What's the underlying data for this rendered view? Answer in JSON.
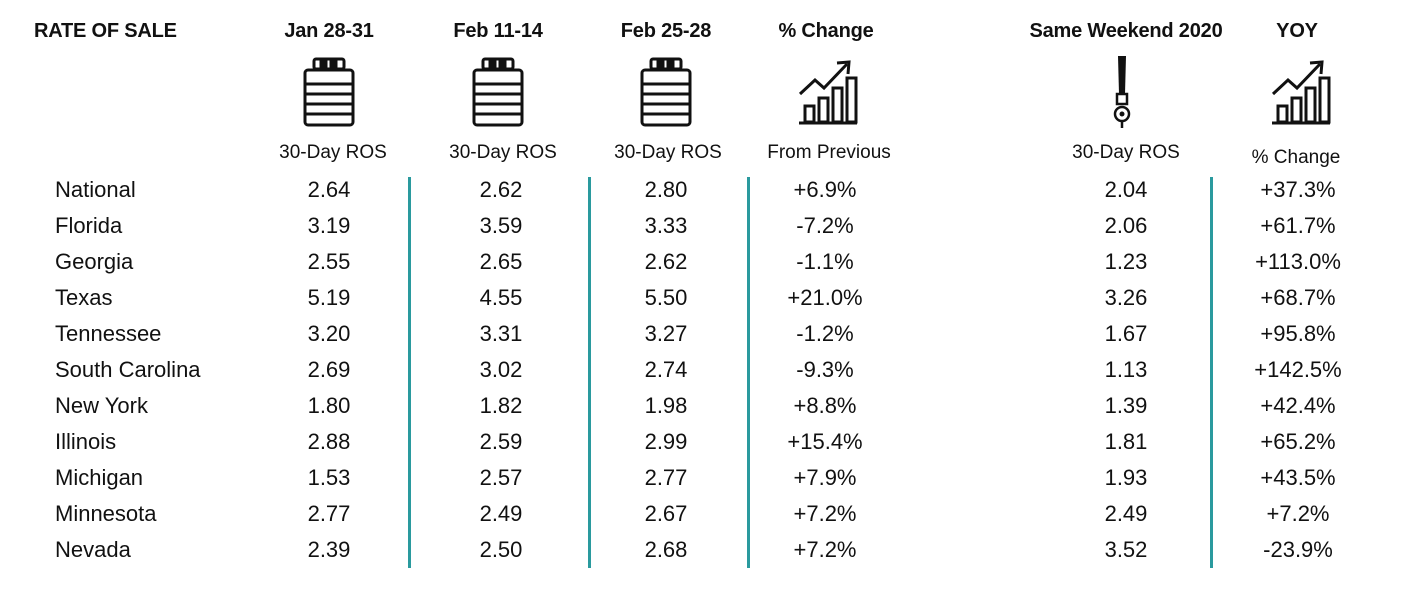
{
  "columns": {
    "label": "RATE OF SALE",
    "jan": "Jan 28-31",
    "feb11": "Feb 11-14",
    "feb25": "Feb 25-28",
    "pct": "% Change",
    "same2020": "Same Weekend 2020",
    "yoy": "YOY"
  },
  "subheaders": {
    "jan": "30-Day ROS",
    "feb11": "30-Day ROS",
    "feb25": "30-Day ROS",
    "pct": "From Previous",
    "same2020": "30-Day ROS",
    "yoy": "% Change"
  },
  "icons": {
    "jan": "keg-icon",
    "feb11": "keg-icon",
    "feb25": "keg-icon",
    "pct": "growth-chart-icon",
    "same2020": "beer-tap-icon",
    "yoy": "growth-chart-icon"
  },
  "colors": {
    "divider": "#2a9a9e"
  },
  "chart_data": {
    "type": "table",
    "title": "RATE OF SALE",
    "columns": [
      "Jan 28-31",
      "Feb 11-14",
      "Feb 25-28",
      "% Change",
      "Same Weekend 2020",
      "YOY"
    ],
    "rows": [
      {
        "state": "National",
        "jan": "2.64",
        "feb11": "2.62",
        "feb25": "2.80",
        "pct": "+6.9%",
        "same2020": "2.04",
        "yoy": "+37.3%"
      },
      {
        "state": "Florida",
        "jan": "3.19",
        "feb11": "3.59",
        "feb25": "3.33",
        "pct": "-7.2%",
        "same2020": "2.06",
        "yoy": "+61.7%"
      },
      {
        "state": "Georgia",
        "jan": "2.55",
        "feb11": "2.65",
        "feb25": "2.62",
        "pct": "-1.1%",
        "same2020": "1.23",
        "yoy": "+113.0%"
      },
      {
        "state": "Texas",
        "jan": "5.19",
        "feb11": "4.55",
        "feb25": "5.50",
        "pct": "+21.0%",
        "same2020": "3.26",
        "yoy": "+68.7%"
      },
      {
        "state": "Tennessee",
        "jan": "3.20",
        "feb11": "3.31",
        "feb25": "3.27",
        "pct": "-1.2%",
        "same2020": "1.67",
        "yoy": "+95.8%"
      },
      {
        "state": "South Carolina",
        "jan": "2.69",
        "feb11": "3.02",
        "feb25": "2.74",
        "pct": "-9.3%",
        "same2020": "1.13",
        "yoy": "+142.5%"
      },
      {
        "state": "New York",
        "jan": "1.80",
        "feb11": "1.82",
        "feb25": "1.98",
        "pct": "+8.8%",
        "same2020": "1.39",
        "yoy": "+42.4%"
      },
      {
        "state": "Illinois",
        "jan": "2.88",
        "feb11": "2.59",
        "feb25": "2.99",
        "pct": "+15.4%",
        "same2020": "1.81",
        "yoy": "+65.2%"
      },
      {
        "state": "Michigan",
        "jan": "1.53",
        "feb11": "2.57",
        "feb25": "2.77",
        "pct": "+7.9%",
        "same2020": "1.93",
        "yoy": "+43.5%"
      },
      {
        "state": "Minnesota",
        "jan": "2.77",
        "feb11": "2.49",
        "feb25": "2.67",
        "pct": "+7.2%",
        "same2020": "2.49",
        "yoy": "+7.2%"
      },
      {
        "state": "Nevada",
        "jan": "2.39",
        "feb11": "2.50",
        "feb25": "2.68",
        "pct": "+7.2%",
        "same2020": "3.52",
        "yoy": "-23.9%"
      }
    ]
  }
}
